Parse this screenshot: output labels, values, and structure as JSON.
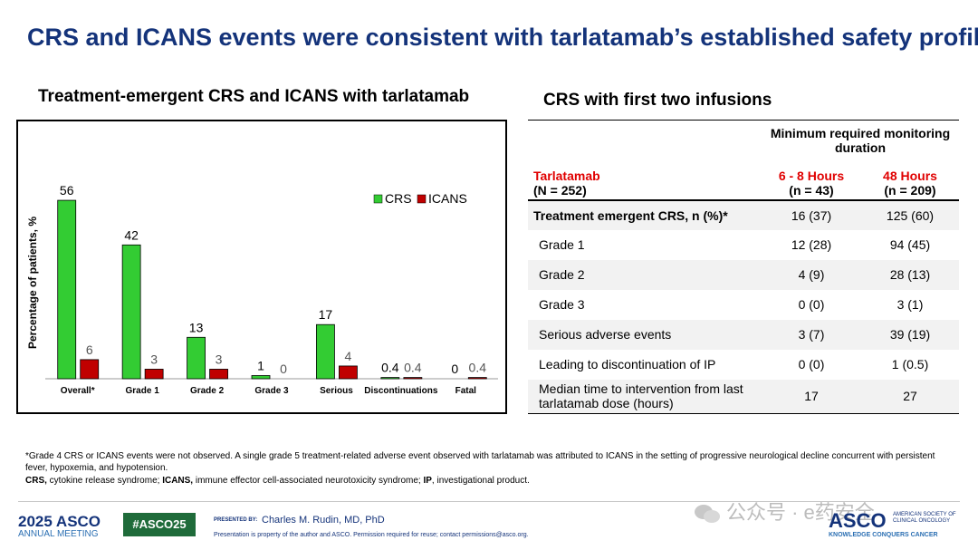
{
  "title": "CRS and ICANS events were consistent with tarlatamab’s established safety profile",
  "chart_heading": "Treatment-emergent CRS and ICANS with tarlatamab",
  "table_heading": "CRS with first two infusions",
  "chart_data": {
    "type": "bar",
    "title": "Treatment-emergent CRS and ICANS with tarlatamab",
    "categories": [
      "Overall*",
      "Grade 1",
      "Grade 2",
      "Grade 3",
      "Serious",
      "Discontinuations",
      "Fatal"
    ],
    "series": [
      {
        "name": "CRS",
        "color": "#33cc33",
        "values": [
          56,
          42,
          13,
          1,
          17,
          0.4,
          0
        ],
        "labels": [
          "56",
          "42",
          "13",
          "1",
          "17",
          "0.4",
          "0"
        ]
      },
      {
        "name": "ICANS",
        "color": "#c00000",
        "values": [
          6,
          3,
          3,
          0,
          4,
          0.4,
          0.4
        ],
        "labels": [
          "6",
          "3",
          "3",
          "0",
          "4",
          "0.4",
          "0.4"
        ]
      }
    ],
    "ylabel": "Percentage of patients, %",
    "xlabel": "",
    "ylim": [
      0,
      60
    ],
    "grid": false,
    "legend_position": "top-right"
  },
  "table": {
    "monitoring_header": "Minimum required monitoring duration",
    "drug_label": "Tarlatamab",
    "drug_n": "(N = 252)",
    "col1_label": "6 - 8 Hours",
    "col1_n": "(n = 43)",
    "col2_label": "48 Hours",
    "col2_n": "(n = 209)",
    "rows": [
      {
        "label": "Treatment emergent CRS, n (%)*",
        "a": "16 (37)",
        "b": "125 (60)"
      },
      {
        "label": "Grade 1",
        "a": "12 (28)",
        "b": "94 (45)"
      },
      {
        "label": "Grade 2",
        "a": "4 (9)",
        "b": "28 (13)"
      },
      {
        "label": "Grade 3",
        "a": "0 (0)",
        "b": "3 (1)"
      },
      {
        "label": "Serious adverse events",
        "a": "3 (7)",
        "b": "39 (19)"
      },
      {
        "label": "Leading to discontinuation of IP",
        "a": "0 (0)",
        "b": "1 (0.5)"
      },
      {
        "label_line1": "Median time to intervention from last",
        "label_line2": "tarlatamab dose (hours)",
        "a": "17",
        "b": "27"
      }
    ]
  },
  "footnote": {
    "line1": "*Grade 4 CRS or ICANS events were not observed. A single grade 5 treatment-related adverse event observed with tarlatamab was attributed to ICANS in the setting of progressive neurological decline concurrent with persistent fever, hypoxemia, and hypotension.",
    "crs_abbr": "CRS,",
    "crs_def": " cytokine release syndrome; ",
    "icans_abbr": "ICANS,",
    "icans_def": " immune effector cell-associated neurotoxicity syndrome; ",
    "ip_abbr": "IP",
    "ip_def": ", investigational product."
  },
  "footer": {
    "asco_year": "2025 ASCO",
    "annual_meeting": "ANNUAL MEETING",
    "hashtag": "#ASCO25",
    "presented_by": "PRESENTED BY:",
    "presenter": "Charles M. Rudin, MD, PhD",
    "property_note": "Presentation is property of the author and ASCO. Permission required for reuse; contact permissions@asco.org.",
    "watermark": "公众号 · e药安全",
    "asco_logo": "ASCO",
    "society_line1": "AMERICAN SOCIETY OF",
    "society_line2": "CLINICAL ONCOLOGY",
    "tagline": "KNOWLEDGE CONQUERS CANCER"
  }
}
